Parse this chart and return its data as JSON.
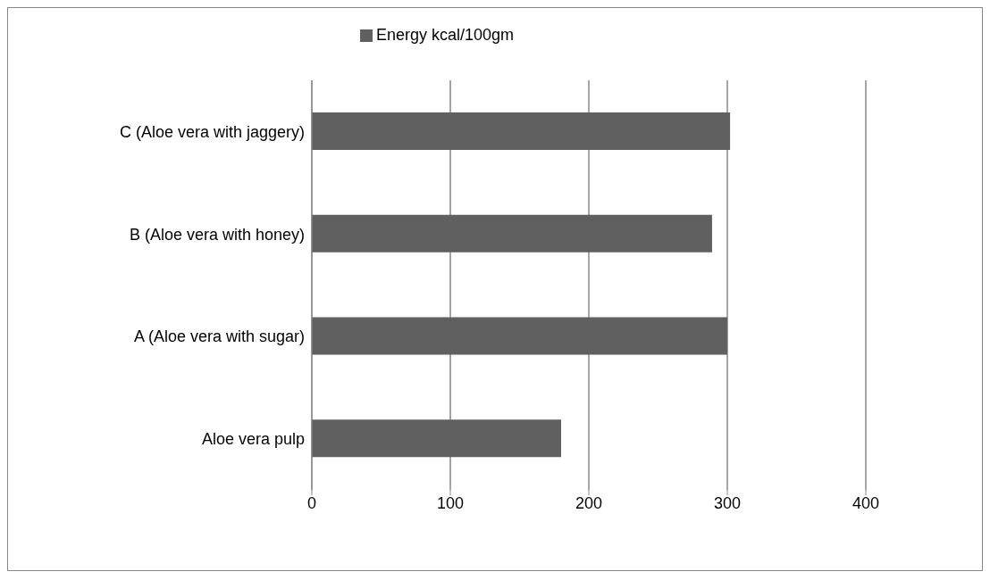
{
  "chart_data": {
    "type": "bar",
    "orientation": "horizontal",
    "categories": [
      "C (Aloe vera with jaggery)",
      "B (Aloe vera with honey)",
      "A (Aloe vera with sugar)",
      "Aloe vera pulp"
    ],
    "series": [
      {
        "name": "Energy kcal/100gm",
        "color": "#606060",
        "values": [
          302,
          289,
          300,
          180
        ]
      }
    ],
    "xlim": [
      0,
      400
    ],
    "xticks": [
      0,
      100,
      200,
      300,
      400
    ],
    "grid": "x",
    "legend": "top"
  }
}
